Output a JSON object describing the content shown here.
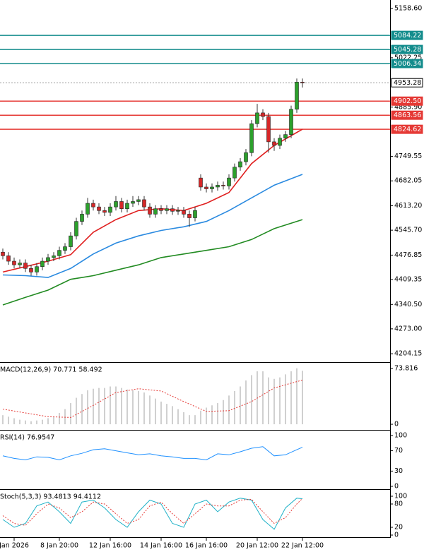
{
  "chart_data": [
    {
      "type": "candlestick",
      "xlim": [
        -0.5,
        68.5
      ],
      "xticks": [
        {
          "value": 2,
          "label": "Jan 2026"
        },
        {
          "value": 10,
          "label": "8 Jan 20:00"
        },
        {
          "value": 19,
          "label": "12 Jan 16:00"
        },
        {
          "value": 28,
          "label": "14 Jan 16:00"
        },
        {
          "value": 36,
          "label": "16 Jan 16:00"
        },
        {
          "value": 45,
          "label": "20 Jan 12:00"
        },
        {
          "value": 53,
          "label": "22 Jan 12:00"
        }
      ],
      "ylim": [
        4183,
        5182
      ],
      "yticks": [
        {
          "value": 5158.6,
          "label": "5158.60"
        },
        5022.25,
        {
          "value": 4885.9,
          "label": "4885.90"
        },
        4749.55,
        4682.05,
        {
          "value": 4613.2,
          "label": "4613.20"
        },
        {
          "value": 4545.7,
          "label": "4545.70"
        },
        4476.85,
        4409.35,
        {
          "value": 4340.5,
          "label": "4340.50"
        },
        {
          "value": 4273,
          "label": "4273.00"
        },
        4204.15
      ],
      "up_color": "#2ca02c",
      "down_color": "#d62728",
      "x": [
        0,
        1,
        2,
        3,
        4,
        5,
        6,
        7,
        8,
        9,
        10,
        11,
        12,
        13,
        14,
        15,
        16,
        17,
        18,
        19,
        20,
        21,
        22,
        23,
        24,
        25,
        26,
        27,
        28,
        29,
        30,
        31,
        32,
        33,
        34,
        35,
        36,
        37,
        38,
        39,
        40,
        41,
        42,
        43,
        44,
        45,
        46,
        47,
        48,
        49,
        50,
        51,
        52,
        53
      ],
      "open": [
        4485,
        4475,
        4460,
        4450,
        4455,
        4440,
        4430,
        4445,
        4460,
        4470,
        4475,
        4490,
        4500,
        4530,
        4570,
        4590,
        4620,
        4610,
        4600,
        4595,
        4610,
        4625,
        4605,
        4620,
        4625,
        4630,
        4610,
        4590,
        4605,
        4600,
        4605,
        4598,
        4600,
        4590,
        4580,
        4690,
        4665,
        4660,
        4665,
        4670,
        4668,
        4690,
        4720,
        4735,
        4760,
        4840,
        4870,
        4860,
        4790,
        4780,
        4800,
        4810,
        4880,
        4955
      ],
      "high": [
        4495,
        4485,
        4470,
        4465,
        4465,
        4450,
        4455,
        4470,
        4480,
        4485,
        4500,
        4510,
        4540,
        4580,
        4600,
        4635,
        4630,
        4620,
        4610,
        4620,
        4640,
        4635,
        4630,
        4640,
        4640,
        4640,
        4620,
        4615,
        4615,
        4615,
        4615,
        4610,
        4610,
        4600,
        4610,
        4700,
        4675,
        4675,
        4680,
        4680,
        4700,
        4730,
        4745,
        4770,
        4850,
        4895,
        4880,
        4870,
        4800,
        4810,
        4820,
        4890,
        4965,
        4965
      ],
      "low": [
        4465,
        4450,
        4440,
        4440,
        4430,
        4420,
        4420,
        4435,
        4450,
        4460,
        4465,
        4480,
        4490,
        4520,
        4560,
        4580,
        4600,
        4590,
        4585,
        4585,
        4600,
        4595,
        4595,
        4610,
        4615,
        4600,
        4580,
        4580,
        4590,
        4590,
        4588,
        4588,
        4580,
        4555,
        4570,
        4655,
        4650,
        4650,
        4655,
        4658,
        4658,
        4680,
        4710,
        4725,
        4750,
        4830,
        4850,
        4760,
        4765,
        4770,
        4790,
        4800,
        4870,
        4940
      ],
      "close": [
        4475,
        4460,
        4450,
        4455,
        4440,
        4430,
        4445,
        4460,
        4470,
        4475,
        4490,
        4500,
        4530,
        4570,
        4590,
        4620,
        4610,
        4600,
        4595,
        4610,
        4625,
        4605,
        4620,
        4625,
        4630,
        4610,
        4590,
        4605,
        4600,
        4605,
        4598,
        4600,
        4590,
        4580,
        4600,
        4665,
        4660,
        4665,
        4670,
        4668,
        4690,
        4720,
        4735,
        4760,
        4840,
        4870,
        4860,
        4790,
        4780,
        4800,
        4810,
        4880,
        4955,
        4953.28
      ],
      "series": [
        {
          "style": "line",
          "color": "#e02020",
          "x": [
            0,
            4,
            8,
            12,
            16,
            20,
            24,
            28,
            32,
            36,
            40,
            44,
            48,
            53
          ],
          "values": [
            4430,
            4445,
            4460,
            4478,
            4540,
            4575,
            4600,
            4605,
            4600,
            4620,
            4650,
            4730,
            4780,
            4825
          ]
        },
        {
          "style": "line",
          "color": "#2a8ae0",
          "x": [
            0,
            4,
            8,
            12,
            16,
            20,
            24,
            28,
            32,
            36,
            40,
            44,
            48,
            53
          ],
          "values": [
            4422,
            4420,
            4415,
            4440,
            4480,
            4510,
            4530,
            4545,
            4555,
            4570,
            4600,
            4635,
            4670,
            4700
          ]
        },
        {
          "style": "line",
          "color": "#228b22",
          "x": [
            0,
            4,
            8,
            12,
            16,
            20,
            24,
            28,
            32,
            36,
            40,
            44,
            48,
            53
          ],
          "values": [
            4339,
            4360,
            4380,
            4410,
            4420,
            4435,
            4450,
            4470,
            4480,
            4490,
            4500,
            4520,
            4550,
            4575
          ]
        }
      ],
      "levels": [
        {
          "value": 5084.22,
          "color": "#138c8c"
        },
        {
          "value": 5045.28,
          "color": "#138c8c"
        },
        {
          "value": 5006.34,
          "color": "#138c8c"
        },
        {
          "value": 4953.28,
          "color": "#9a9a9a",
          "style": "dotted"
        },
        {
          "value": 4902.5,
          "label": "4902.50",
          "color": "#e53935"
        },
        {
          "value": 4863.56,
          "color": "#e53935"
        },
        {
          "value": 4824.62,
          "color": "#e53935"
        }
      ]
    },
    {
      "type": "indicator",
      "title": "MACD(12,26,9) 70.771 58.492",
      "ylim": [
        -6.5,
        79.4
      ],
      "yticks": [
        73.816,
        0
      ],
      "series": [
        {
          "style": "bar",
          "color": "#b0b0b0",
          "x": [
            0,
            1,
            2,
            3,
            4,
            5,
            6,
            7,
            8,
            9,
            10,
            11,
            12,
            13,
            14,
            15,
            16,
            17,
            18,
            19,
            20,
            21,
            22,
            23,
            24,
            25,
            26,
            27,
            28,
            29,
            30,
            31,
            32,
            33,
            34,
            35,
            36,
            37,
            38,
            39,
            40,
            41,
            42,
            43,
            44,
            45,
            46,
            47,
            48,
            49,
            50,
            51,
            52,
            53
          ],
          "values": [
            12,
            10,
            8,
            6,
            5,
            4,
            5,
            6,
            8,
            10,
            15,
            20,
            28,
            35,
            40,
            45,
            47,
            48,
            48,
            50,
            50,
            48,
            46,
            45,
            44,
            42,
            38,
            34,
            30,
            27,
            24,
            20,
            16,
            12,
            12,
            18,
            22,
            25,
            28,
            32,
            38,
            44,
            50,
            58,
            65,
            70,
            70,
            62,
            60,
            62,
            66,
            70,
            74,
            70.771
          ]
        },
        {
          "style": "dotted",
          "color": "#e53935",
          "x": [
            0,
            4,
            8,
            12,
            16,
            20,
            24,
            28,
            32,
            36,
            40,
            44,
            48,
            53
          ],
          "values": [
            20,
            15,
            10,
            9,
            25,
            42,
            47,
            44,
            30,
            17,
            18,
            30,
            48,
            58.492
          ]
        }
      ]
    },
    {
      "type": "indicator",
      "title": "RSI(14) 76.9547",
      "ylim": [
        -4.2,
        106.9
      ],
      "yticks": [
        100,
        70,
        30,
        0
      ],
      "series": [
        {
          "style": "line",
          "color": "#1e90ff",
          "x": [
            0,
            2,
            4,
            6,
            8,
            10,
            12,
            14,
            16,
            18,
            20,
            22,
            24,
            26,
            28,
            30,
            32,
            34,
            36,
            38,
            40,
            42,
            44,
            46,
            48,
            50,
            52,
            53
          ],
          "values": [
            60,
            55,
            52,
            58,
            57,
            52,
            60,
            65,
            72,
            74,
            70,
            66,
            62,
            64,
            60,
            58,
            55,
            55,
            52,
            64,
            62,
            68,
            75,
            78,
            60,
            62,
            72,
            76.9547
          ]
        }
      ]
    },
    {
      "type": "indicator",
      "title": "Stoch(5,3,3) 93.4813 94.4112",
      "ylim": [
        -3.6,
        112.7
      ],
      "yticks": [
        100,
        80,
        20,
        0
      ],
      "series": [
        {
          "style": "line",
          "color": "#20b2c8",
          "x": [
            0,
            2,
            4,
            6,
            8,
            10,
            12,
            14,
            16,
            18,
            20,
            22,
            24,
            26,
            28,
            30,
            32,
            34,
            36,
            38,
            40,
            42,
            44,
            46,
            48,
            50,
            52,
            53
          ],
          "values": [
            40,
            20,
            30,
            75,
            85,
            60,
            30,
            85,
            90,
            70,
            40,
            20,
            60,
            90,
            80,
            30,
            20,
            80,
            90,
            60,
            85,
            95,
            90,
            40,
            15,
            70,
            95,
            93.4813
          ]
        },
        {
          "style": "dotted",
          "color": "#e53935",
          "x": [
            0,
            2,
            4,
            6,
            8,
            10,
            12,
            14,
            16,
            18,
            20,
            22,
            24,
            26,
            28,
            30,
            32,
            34,
            36,
            38,
            40,
            42,
            44,
            46,
            48,
            50,
            52,
            53
          ],
          "values": [
            50,
            30,
            25,
            55,
            80,
            70,
            45,
            60,
            85,
            80,
            55,
            30,
            40,
            75,
            85,
            55,
            30,
            55,
            80,
            75,
            75,
            90,
            92,
            60,
            30,
            45,
            80,
            94.4112
          ]
        }
      ]
    }
  ]
}
